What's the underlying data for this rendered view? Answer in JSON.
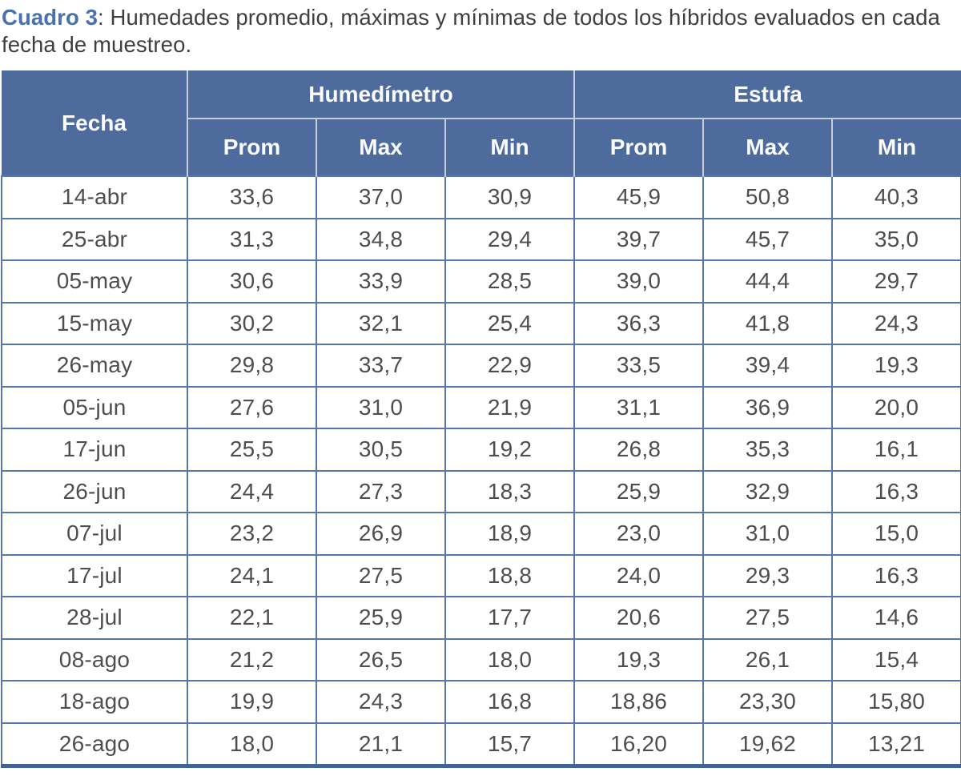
{
  "caption": {
    "label": "Cuadro 3",
    "text": ": Humedades promedio, máximas y mínimas de todos los híbridos evaluados en cada fecha de muestreo."
  },
  "table": {
    "corner_header": "Fecha",
    "group_headers": [
      "Humedímetro",
      "Estufa"
    ],
    "sub_headers": [
      "Prom",
      "Max",
      "Min",
      "Prom",
      "Max",
      "Min"
    ],
    "rows": [
      {
        "cells": [
          "14-abr",
          "33,6",
          "37,0",
          "30,9",
          "45,9",
          "50,8",
          "40,3"
        ]
      },
      {
        "cells": [
          "25-abr",
          "31,3",
          "34,8",
          "29,4",
          "39,7",
          "45,7",
          "35,0"
        ]
      },
      {
        "cells": [
          "05-may",
          "30,6",
          "33,9",
          "28,5",
          "39,0",
          "44,4",
          "29,7"
        ]
      },
      {
        "cells": [
          "15-may",
          "30,2",
          "32,1",
          "25,4",
          "36,3",
          "41,8",
          "24,3"
        ]
      },
      {
        "cells": [
          "26-may",
          "29,8",
          "33,7",
          "22,9",
          "33,5",
          "39,4",
          "19,3"
        ]
      },
      {
        "cells": [
          "05-jun",
          "27,6",
          "31,0",
          "21,9",
          "31,1",
          "36,9",
          "20,0"
        ]
      },
      {
        "cells": [
          "17-jun",
          "25,5",
          "30,5",
          "19,2",
          "26,8",
          "35,3",
          "16,1"
        ]
      },
      {
        "cells": [
          "26-jun",
          "24,4",
          "27,3",
          "18,3",
          "25,9",
          "32,9",
          "16,3"
        ]
      },
      {
        "cells": [
          "07-jul",
          "23,2",
          "26,9",
          "18,9",
          "23,0",
          "31,0",
          "15,0"
        ]
      },
      {
        "cells": [
          "17-jul",
          "24,1",
          "27,5",
          "18,8",
          "24,0",
          "29,3",
          "16,3"
        ]
      },
      {
        "cells": [
          "28-jul",
          "22,1",
          "25,9",
          "17,7",
          "20,6",
          "27,5",
          "14,6"
        ]
      },
      {
        "cells": [
          "08-ago",
          "21,2",
          "26,5",
          "18,0",
          "19,3",
          "26,1",
          "15,4"
        ]
      },
      {
        "cells": [
          "18-ago",
          "19,9",
          "24,3",
          "16,8",
          "18,86",
          "23,30",
          "15,80"
        ]
      },
      {
        "cells": [
          "26-ago",
          "18,0",
          "21,1",
          "15,7",
          "16,20",
          "19,62",
          "13,21"
        ]
      }
    ],
    "colors": {
      "header_bg": "#4d6b9c",
      "header_text": "#fbfbfc",
      "header_divider": "#c9cdd6",
      "grid_line": "#5577ab",
      "bottom_border": "#41629b",
      "body_text": "#4e4e4e",
      "caption_label": "#4a70ae",
      "caption_text": "#3f3f3f"
    }
  }
}
